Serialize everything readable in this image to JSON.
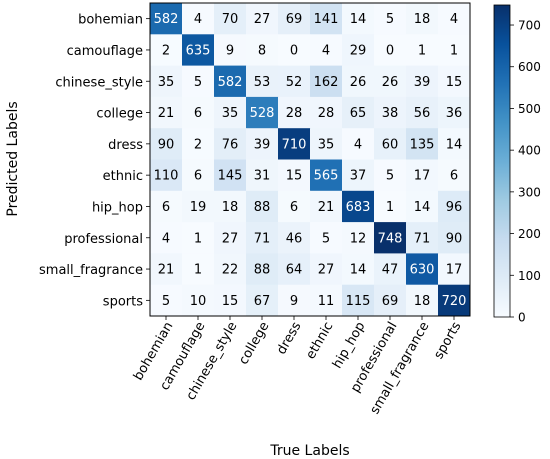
{
  "chart_data": {
    "type": "heatmap",
    "xlabel": "True Labels",
    "ylabel": "Predicted Labels",
    "x_categories": [
      "bohemian",
      "camouflage",
      "chinese_style",
      "college",
      "dress",
      "ethnic",
      "hip_hop",
      "professional",
      "small_fragrance",
      "sports"
    ],
    "y_categories": [
      "bohemian",
      "camouflage",
      "chinese_style",
      "college",
      "dress",
      "ethnic",
      "hip_hop",
      "professional",
      "small_fragrance",
      "sports"
    ],
    "values": [
      [
        582,
        4,
        70,
        27,
        69,
        141,
        14,
        5,
        18,
        4
      ],
      [
        2,
        635,
        9,
        8,
        0,
        4,
        29,
        0,
        1,
        1
      ],
      [
        35,
        5,
        582,
        53,
        52,
        162,
        26,
        26,
        39,
        15
      ],
      [
        21,
        6,
        35,
        528,
        28,
        28,
        65,
        38,
        56,
        36
      ],
      [
        90,
        2,
        76,
        39,
        710,
        35,
        4,
        60,
        135,
        14
      ],
      [
        110,
        6,
        145,
        31,
        15,
        565,
        37,
        5,
        17,
        6
      ],
      [
        6,
        19,
        18,
        88,
        6,
        21,
        683,
        1,
        14,
        96
      ],
      [
        4,
        1,
        27,
        71,
        46,
        5,
        12,
        748,
        71,
        90
      ],
      [
        21,
        1,
        22,
        88,
        64,
        27,
        14,
        47,
        630,
        17
      ],
      [
        5,
        10,
        15,
        67,
        9,
        11,
        115,
        69,
        18,
        720
      ]
    ],
    "colorbar": {
      "colormap": "Blues",
      "range": [
        0,
        748
      ],
      "ticks": [
        0,
        100,
        200,
        300,
        400,
        500,
        600,
        700
      ]
    },
    "text_threshold": 374,
    "grid": false
  }
}
